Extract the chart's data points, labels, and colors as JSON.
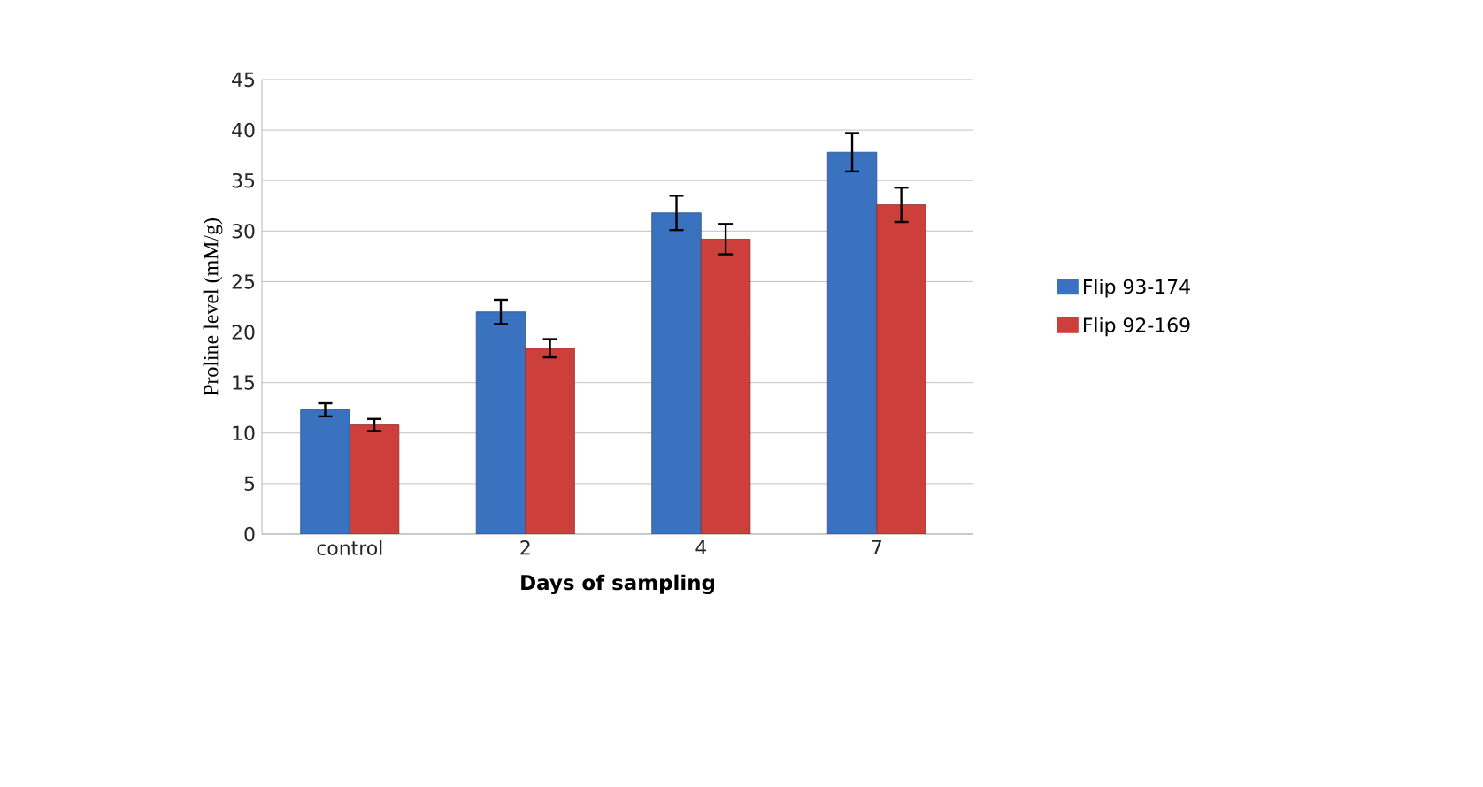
{
  "chart_data": {
    "type": "bar",
    "xlabel": "Days of  sampling",
    "ylabel": "Proline level (mM/g)",
    "categories": [
      "control",
      "2",
      "4",
      "7"
    ],
    "series": [
      {
        "name": "Flip 93-174",
        "color": "#3a72c0",
        "values": [
          12.3,
          22.0,
          31.8,
          37.8
        ],
        "errors": [
          0.65,
          1.2,
          1.7,
          1.9
        ]
      },
      {
        "name": "Flip 92-169",
        "color": "#cc3f3a",
        "values": [
          10.8,
          18.4,
          29.2,
          32.6
        ],
        "errors": [
          0.6,
          0.9,
          1.5,
          1.7
        ]
      }
    ],
    "ylim": [
      0,
      45
    ],
    "yticks": [
      0,
      5,
      10,
      15,
      20,
      25,
      30,
      35,
      40,
      45
    ],
    "grid": "y",
    "legend": "right"
  }
}
